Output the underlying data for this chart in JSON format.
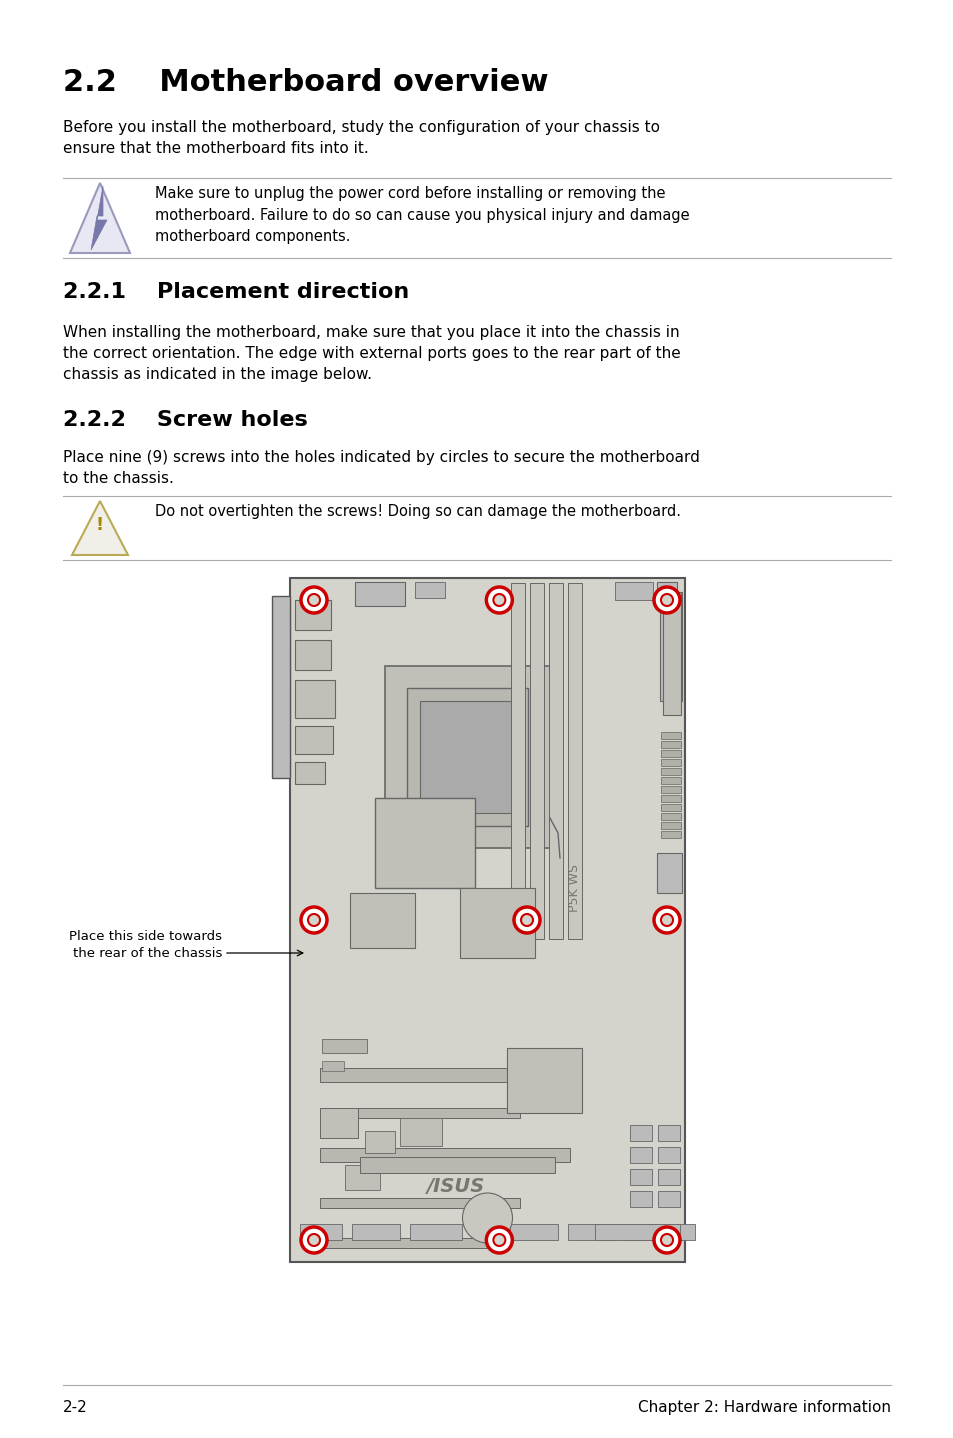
{
  "bg_color": "#ffffff",
  "title": "2.2    Motherboard overview",
  "body_text_1": "Before you install the motherboard, study the configuration of your chassis to\nensure that the motherboard fits into it.",
  "warning_text_1": "Make sure to unplug the power cord before installing or removing the\nmotherboard. Failure to do so can cause you physical injury and damage\nmotherboard components.",
  "section_221_title": "2.2.1    Placement direction",
  "section_221_text": "When installing the motherboard, make sure that you place it into the chassis in\nthe correct orientation. The edge with external ports goes to the rear part of the\nchassis as indicated in the image below.",
  "section_222_title": "2.2.2    Screw holes",
  "section_222_text": "Place nine (9) screws into the holes indicated by circles to secure the motherboard\nto the chassis.",
  "warning_text_2": "Do not overtighten the screws! Doing so can damage the motherboard.",
  "footer_left": "2-2",
  "footer_right": "Chapter 2: Hardware information",
  "annotation_text": "Place this side towards\nthe rear of the chassis",
  "board_color": "#d4d4cc",
  "board_edge_color": "#555555",
  "component_color": "#c0c0b8",
  "component_edge": "#666666",
  "screw_red": "#cc0000",
  "text_color": "#000000",
  "line_color": "#aaaaaa",
  "icon_fill": "#e8e8f4",
  "icon_edge1": "#9999bb",
  "bolt_color": "#7777aa",
  "icon2_fill": "#f0f0e8",
  "icon2_edge": "#bbaa55",
  "icon2_text": "#aa8800"
}
